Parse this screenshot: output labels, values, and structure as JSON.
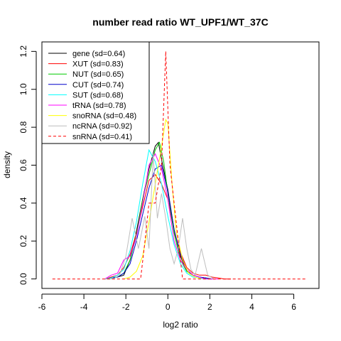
{
  "chart_data": {
    "type": "line",
    "title": "number read ratio WT_UPF1/WT_37C",
    "xlabel": "log2 ratio",
    "ylabel": "density",
    "xlim": [
      -6.0,
      7.2
    ],
    "ylim": [
      -0.05,
      1.25
    ],
    "xticks": [
      -6,
      -4,
      -2,
      0,
      2,
      4,
      6
    ],
    "xtick_labels": [
      "-6",
      "-4",
      "-2",
      "0",
      "2",
      "4",
      "6"
    ],
    "yticks": [
      0.0,
      0.2,
      0.4,
      0.6,
      0.8,
      1.0,
      1.2
    ],
    "ytick_labels": [
      "0.0",
      "0.2",
      "0.4",
      "0.6",
      "0.8",
      "1.0",
      "1.2"
    ],
    "grid": false,
    "legend_position": "top-left",
    "series": [
      {
        "name": "gene (sd=0.64)",
        "color": "#000000",
        "dash": false,
        "x": [
          -3.0,
          -2.7,
          -2.4,
          -2.1,
          -1.8,
          -1.5,
          -1.2,
          -0.9,
          -0.6,
          -0.45,
          -0.3,
          0.0,
          0.3,
          0.6,
          0.9,
          1.2,
          1.5,
          1.8,
          2.1
        ],
        "y": [
          0.0,
          0.005,
          0.01,
          0.02,
          0.1,
          0.25,
          0.42,
          0.58,
          0.7,
          0.72,
          0.63,
          0.47,
          0.26,
          0.12,
          0.04,
          0.02,
          0.01,
          0.005,
          0.0
        ]
      },
      {
        "name": "XUT (sd=0.83)",
        "color": "#ff0000",
        "dash": false,
        "x": [
          -3.0,
          -2.7,
          -2.4,
          -2.1,
          -1.8,
          -1.5,
          -1.2,
          -0.9,
          -0.6,
          -0.3,
          0.0,
          0.3,
          0.6,
          0.9,
          1.2,
          1.5,
          1.8,
          2.1,
          2.4,
          2.7,
          3.0
        ],
        "y": [
          0.0,
          0.01,
          0.02,
          0.06,
          0.13,
          0.24,
          0.38,
          0.52,
          0.55,
          0.5,
          0.42,
          0.25,
          0.14,
          0.06,
          0.03,
          0.02,
          0.02,
          0.01,
          0.005,
          0.0,
          0.0
        ]
      },
      {
        "name": "NUT (sd=0.65)",
        "color": "#00cc00",
        "dash": false,
        "x": [
          -3.0,
          -2.7,
          -2.4,
          -2.1,
          -1.8,
          -1.5,
          -1.2,
          -0.9,
          -0.6,
          -0.4,
          -0.2,
          0.0,
          0.3,
          0.6,
          0.9,
          1.2,
          1.5,
          1.8,
          2.1
        ],
        "y": [
          0.0,
          0.005,
          0.01,
          0.03,
          0.1,
          0.23,
          0.42,
          0.55,
          0.68,
          0.72,
          0.62,
          0.45,
          0.24,
          0.1,
          0.04,
          0.02,
          0.01,
          0.005,
          0.0
        ]
      },
      {
        "name": "CUT (sd=0.74)",
        "color": "#0000cc",
        "dash": false,
        "x": [
          -3.0,
          -2.7,
          -2.4,
          -2.1,
          -1.8,
          -1.5,
          -1.2,
          -0.9,
          -0.6,
          -0.3,
          0.0,
          0.3,
          0.6,
          0.9,
          1.2,
          1.5,
          1.8,
          2.1
        ],
        "y": [
          0.0,
          0.005,
          0.01,
          0.03,
          0.08,
          0.2,
          0.34,
          0.48,
          0.58,
          0.6,
          0.46,
          0.26,
          0.13,
          0.05,
          0.02,
          0.01,
          0.005,
          0.0
        ]
      },
      {
        "name": "SUT (sd=0.68)",
        "color": "#00ffff",
        "dash": false,
        "x": [
          -3.0,
          -2.7,
          -2.4,
          -2.1,
          -1.8,
          -1.5,
          -1.2,
          -0.9,
          -0.6,
          -0.3,
          0.0,
          0.3,
          0.6,
          0.9,
          1.2,
          1.5,
          1.8,
          2.1
        ],
        "y": [
          0.0,
          0.005,
          0.02,
          0.05,
          0.15,
          0.3,
          0.5,
          0.68,
          0.62,
          0.5,
          0.33,
          0.18,
          0.08,
          0.03,
          0.01,
          0.005,
          0.0,
          0.0
        ]
      },
      {
        "name": "tRNA (sd=0.78)",
        "color": "#ff00ff",
        "dash": false,
        "x": [
          -3.0,
          -2.7,
          -2.4,
          -2.1,
          -1.8,
          -1.5,
          -1.2,
          -0.9,
          -0.6,
          -0.3,
          0.0,
          0.3,
          0.6,
          0.9,
          1.2,
          1.5,
          1.8,
          2.1,
          2.4
        ],
        "y": [
          0.0,
          0.02,
          0.03,
          0.1,
          0.12,
          0.22,
          0.4,
          0.6,
          0.66,
          0.58,
          0.42,
          0.2,
          0.1,
          0.05,
          0.02,
          0.01,
          0.0,
          0.0,
          0.0
        ]
      },
      {
        "name": "snoRNA (sd=0.48)",
        "color": "#ffff00",
        "dash": false,
        "x": [
          -2.1,
          -1.8,
          -1.5,
          -1.2,
          -0.9,
          -0.6,
          -0.3,
          -0.1,
          0.0,
          0.2,
          0.4,
          0.7,
          1.0,
          1.3,
          1.6
        ],
        "y": [
          0.0,
          0.01,
          0.04,
          0.12,
          0.3,
          0.5,
          0.7,
          0.84,
          0.82,
          0.5,
          0.25,
          0.1,
          0.03,
          0.01,
          0.0
        ]
      },
      {
        "name": "ncRNA (sd=0.92)",
        "color": "#bebebe",
        "dash": false,
        "x": [
          -3.0,
          -2.6,
          -2.3,
          -2.0,
          -1.7,
          -1.4,
          -1.1,
          -0.9,
          -0.7,
          -0.5,
          -0.3,
          -0.1,
          0.1,
          0.3,
          0.5,
          0.7,
          0.9,
          1.1,
          1.3,
          1.6,
          1.9,
          2.2
        ],
        "y": [
          0.0,
          0.0,
          0.02,
          0.12,
          0.32,
          0.16,
          0.33,
          0.16,
          0.66,
          0.32,
          0.45,
          0.32,
          0.16,
          0.08,
          0.16,
          0.32,
          0.16,
          0.05,
          0.02,
          0.16,
          0.02,
          0.0
        ]
      },
      {
        "name": "snRNA (sd=0.41)",
        "color": "#ff0000",
        "dash": true,
        "x": [
          -5.5,
          -1.3,
          -1.1,
          -0.9,
          -0.6,
          -0.3,
          -0.1,
          0.1,
          0.3,
          0.5,
          0.7,
          0.9,
          1.1,
          1.4,
          6.6
        ],
        "y": [
          0.0,
          0.0,
          0.19,
          0.4,
          0.4,
          0.6,
          1.2,
          0.6,
          0.4,
          0.2,
          0.0,
          0.0,
          0.0,
          0.0,
          0.0
        ]
      }
    ]
  }
}
